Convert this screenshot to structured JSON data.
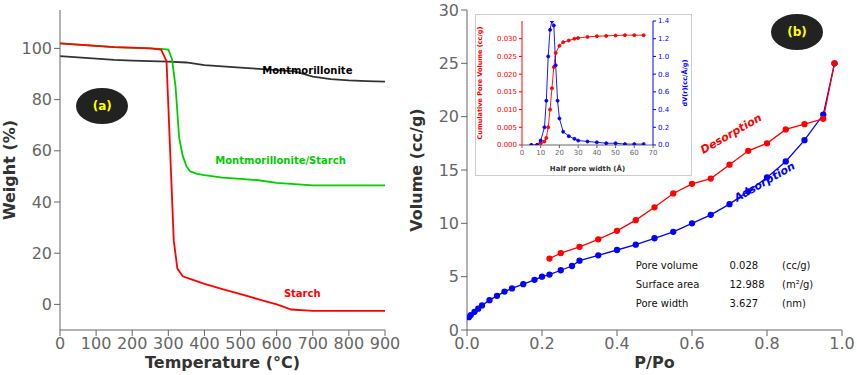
{
  "chart_data": [
    {
      "type": "line",
      "title": "(a)",
      "xlabel": "Temperature (°C)",
      "ylabel": "Weight (%)",
      "xlim": [
        0,
        900
      ],
      "xticks": [
        0,
        100,
        200,
        300,
        400,
        500,
        600,
        700,
        800,
        900
      ],
      "ylim": [
        -10,
        115
      ],
      "yticks": [
        0,
        20,
        40,
        60,
        80,
        100
      ],
      "grid": false,
      "series": [
        {
          "color": "#333333",
          "x": [
            0,
            50,
            100,
            150,
            200,
            250,
            300,
            350,
            400,
            450,
            500,
            550,
            600,
            650,
            700,
            750,
            800,
            850,
            900
          ],
          "values": [
            97,
            96.5,
            96,
            95.5,
            95.2,
            95,
            94.8,
            94.5,
            93.5,
            93,
            92.5,
            92,
            91.5,
            91,
            89,
            88,
            87.5,
            87.2,
            87
          ]
        },
        {
          "color": "#00cc00",
          "x": [
            0,
            50,
            100,
            150,
            200,
            250,
            280,
            300,
            310,
            320,
            330,
            340,
            350,
            360,
            380,
            400,
            450,
            500,
            550,
            600,
            650,
            700,
            750,
            800,
            850,
            900
          ],
          "values": [
            102,
            101.5,
            101,
            100.5,
            100.2,
            100,
            99.8,
            99.5,
            96,
            85,
            65,
            58,
            54,
            52,
            51,
            50.5,
            49.5,
            49,
            48.5,
            47.5,
            47,
            46.5,
            46.5,
            46.5,
            46.5,
            46.5
          ]
        },
        {
          "color": "#ff0000",
          "x": [
            0,
            50,
            100,
            150,
            200,
            250,
            280,
            295,
            305,
            315,
            325,
            340,
            360,
            400,
            450,
            500,
            550,
            600,
            620,
            640,
            700,
            750,
            800,
            850,
            900
          ],
          "values": [
            102,
            101.5,
            101,
            100.5,
            100.3,
            100,
            99.5,
            95,
            60,
            25,
            14,
            11,
            10,
            8,
            6,
            4,
            2,
            0,
            -1,
            -2,
            -2.5,
            -2.5,
            -2.5,
            -2.5,
            -2.5
          ]
        }
      ],
      "annotations": [
        {
          "text": "Montmorillonite",
          "x": 560,
          "y": 90,
          "color": "black"
        },
        {
          "text": "Montmorillonite/Starch",
          "x": 430,
          "y": 55,
          "color": "#00cc00"
        },
        {
          "text": "Starch",
          "x": 620,
          "y": 3,
          "color": "red"
        }
      ]
    },
    {
      "type": "line",
      "title": "(b)",
      "xlabel": "P/Po",
      "ylabel": "Volume (cc/g)",
      "xlim": [
        0,
        1.0
      ],
      "xticks": [
        {
          "value": 0,
          "label": "0.0"
        },
        0.2,
        0.4,
        0.6,
        0.8,
        {
          "value": 1,
          "label": "1.0"
        }
      ],
      "ylim": [
        0,
        30
      ],
      "yticks": [
        0,
        5,
        10,
        15,
        20,
        25,
        30
      ],
      "grid": false,
      "marker": "circle",
      "series": [
        {
          "color": "#0000ff",
          "x": [
            0.005,
            0.01,
            0.02,
            0.03,
            0.04,
            0.06,
            0.08,
            0.1,
            0.12,
            0.15,
            0.18,
            0.2,
            0.22,
            0.25,
            0.28,
            0.3,
            0.35,
            0.4,
            0.45,
            0.5,
            0.55,
            0.6,
            0.65,
            0.7,
            0.75,
            0.8,
            0.85,
            0.9,
            0.95,
            0.98
          ],
          "values": [
            1.2,
            1.4,
            1.7,
            2.0,
            2.3,
            2.8,
            3.2,
            3.6,
            3.9,
            4.3,
            4.7,
            5.0,
            5.2,
            5.6,
            6.0,
            6.5,
            7.0,
            7.5,
            8.0,
            8.6,
            9.2,
            10.0,
            10.8,
            11.8,
            13.0,
            14.3,
            15.8,
            17.8,
            20.2,
            25.0
          ]
        },
        {
          "color": "#ff0000",
          "x": [
            0.98,
            0.95,
            0.9,
            0.85,
            0.8,
            0.75,
            0.7,
            0.65,
            0.6,
            0.55,
            0.5,
            0.45,
            0.4,
            0.35,
            0.3,
            0.25,
            0.22
          ],
          "values": [
            25.0,
            19.8,
            19.3,
            18.8,
            17.5,
            16.8,
            15.5,
            14.2,
            13.7,
            12.8,
            11.5,
            10.3,
            9.3,
            8.5,
            7.8,
            7.2,
            6.7
          ]
        }
      ],
      "annotations": [
        {
          "text": "Desorption",
          "x": 0.63,
          "y": 16.5,
          "color": "red"
        },
        {
          "text": "Adsorption",
          "x": 0.72,
          "y": 12.0,
          "color": "#0000ff"
        }
      ],
      "table": [
        [
          "Pore volume",
          "0.028",
          "(cc/g)"
        ],
        [
          "Surface area",
          "12.988",
          "(m²/g)"
        ],
        [
          "Pore width",
          "3.627",
          "(nm)"
        ]
      ]
    },
    {
      "type": "line",
      "xlabel": "Half pore width (Å)",
      "ylabel": "Cumulative Pore Volume (cc/g)",
      "y2label": "dV(r)(cc/Å/g)",
      "xlim": [
        0,
        70
      ],
      "xticks": [
        0,
        10,
        20,
        30,
        40,
        50,
        60,
        70
      ],
      "ylim": [
        0,
        0.035
      ],
      "yticks": [
        {
          "value": 0,
          "label": "0.000"
        },
        0.005,
        {
          "value": 0.01,
          "label": "0.010"
        },
        0.015,
        {
          "value": 0.02,
          "label": "0.020"
        },
        0.025,
        {
          "value": 0.03,
          "label": "0.030"
        }
      ],
      "y2lim": [
        0,
        1.4
      ],
      "y2ticks": [
        {
          "value": 0,
          "label": "0.0"
        },
        0.2,
        0.4,
        0.6,
        0.8,
        {
          "value": 1,
          "label": "1.0"
        },
        1.2,
        1.4
      ],
      "grid": false,
      "marker": "circle",
      "series": [
        {
          "color": "#ff0000",
          "x": [
            5,
            8,
            10,
            12,
            13,
            14,
            15,
            16,
            17,
            18,
            20,
            22,
            25,
            28,
            30,
            35,
            40,
            45,
            50,
            55,
            60,
            65
          ],
          "values": [
            0,
            0,
            0.0005,
            0.001,
            0.002,
            0.005,
            0.01,
            0.016,
            0.022,
            0.026,
            0.028,
            0.029,
            0.0295,
            0.03,
            0.0302,
            0.0305,
            0.0307,
            0.0308,
            0.0309,
            0.031,
            0.031,
            0.031
          ]
        },
        {
          "color": "#0000ff",
          "axis": "y2",
          "x": [
            5,
            8,
            10,
            12,
            13,
            14,
            15,
            16,
            17,
            18,
            19,
            20,
            22,
            25,
            28,
            30,
            35,
            40,
            45,
            50,
            55,
            60,
            65
          ],
          "values": [
            0.0,
            0.0,
            0.05,
            0.2,
            0.5,
            1.0,
            1.3,
            1.4,
            1.35,
            0.9,
            0.5,
            0.3,
            0.15,
            0.1,
            0.07,
            0.05,
            0.04,
            0.03,
            0.02,
            0.02,
            0.01,
            0.01,
            0.01
          ]
        }
      ]
    }
  ]
}
